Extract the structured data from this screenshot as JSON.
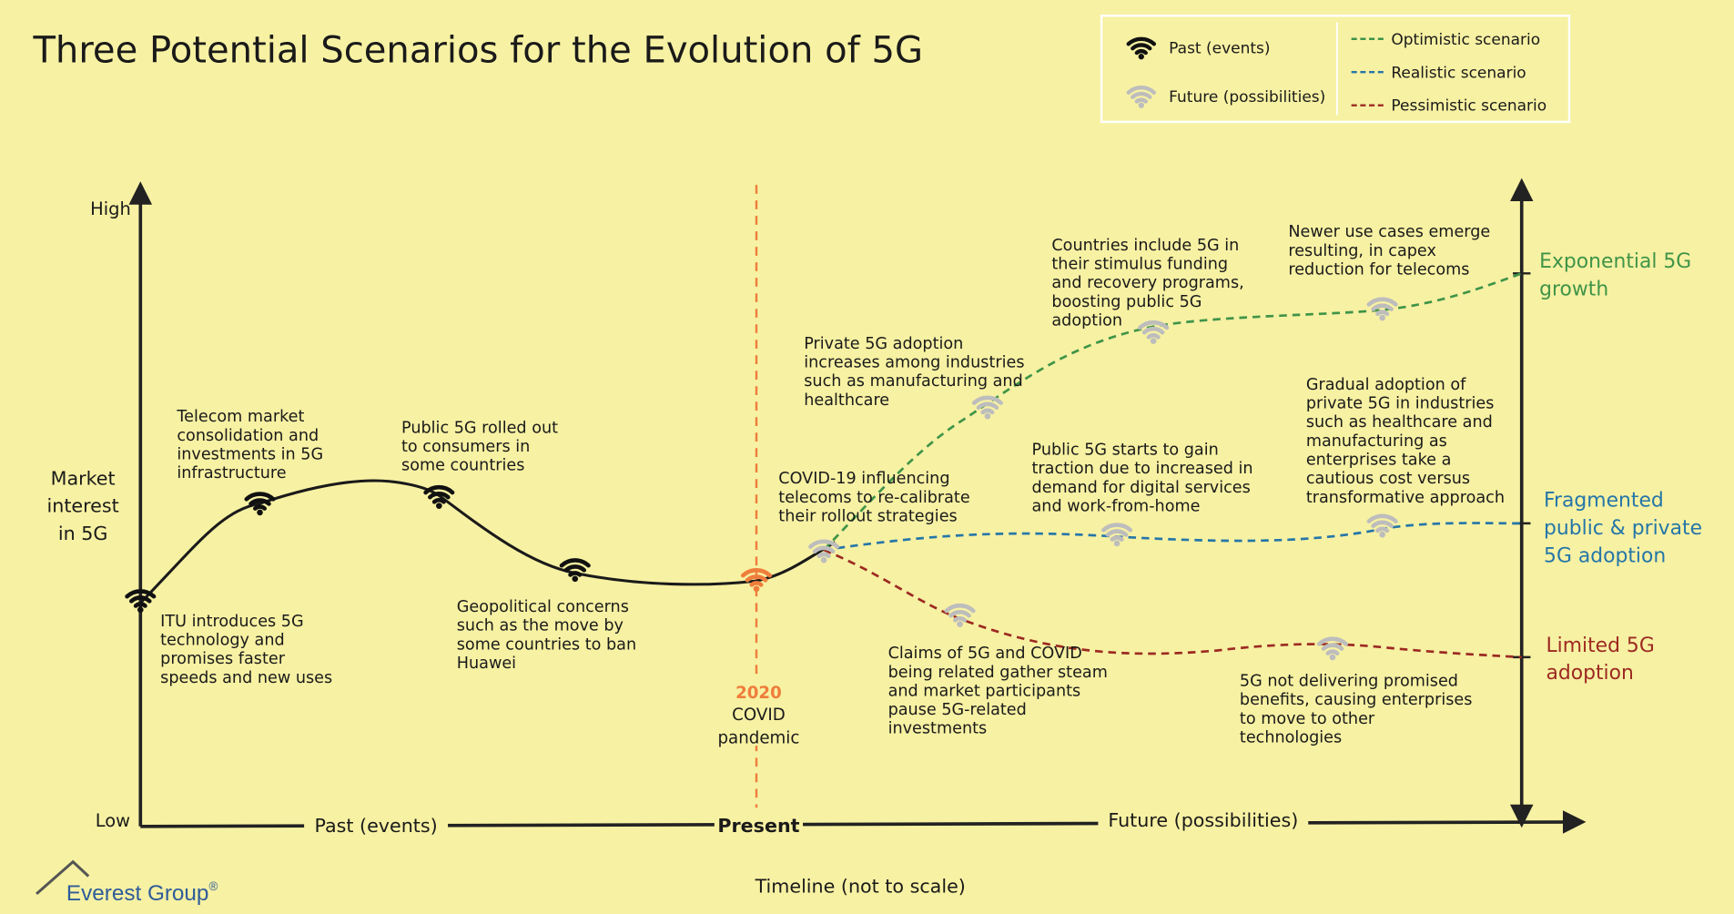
{
  "title": "Three Potential Scenarios for the Evolution of 5G",
  "legend": {
    "icons": [
      "Past (events)",
      "Future (possibilities)"
    ],
    "lines": [
      {
        "label": "Optimistic scenario",
        "color": "#3f9448"
      },
      {
        "label": "Realistic scenario",
        "color": "#2576a8"
      },
      {
        "label": "Pessimistic scenario",
        "color": "#9c2a22"
      }
    ]
  },
  "y_axis": {
    "high": "High",
    "low": "Low",
    "label": [
      "Market",
      "interest",
      "in 5G"
    ]
  },
  "x_axis": {
    "past": "Past (events)",
    "present": "Present",
    "future": "Future (possibilities)",
    "title": "Timeline (not to scale)"
  },
  "present_marker": {
    "year": "2020",
    "label": [
      "COVID",
      "pandemic"
    ]
  },
  "events": [
    {
      "lines": [
        "ITU introduces 5G",
        "technology and",
        "promises faster",
        "speeds and new uses"
      ]
    },
    {
      "lines": [
        "Telecom market",
        "consolidation and",
        "investments in 5G",
        "infrastructure"
      ]
    },
    {
      "lines": [
        "Public 5G rolled out",
        "to consumers in",
        "some countries"
      ]
    },
    {
      "lines": [
        "Geopolitical concerns",
        "such as the move by",
        "some countries to ban",
        "Huawei"
      ]
    },
    {
      "lines": [
        "COVID-19 influencing",
        "telecoms to re-calibrate",
        "their rollout strategies"
      ]
    },
    {
      "lines": [
        "Private 5G adoption",
        "increases among industries",
        "such as manufacturing and",
        "healthcare"
      ]
    },
    {
      "lines": [
        "Countries include 5G in",
        "their stimulus funding",
        "and recovery programs,",
        "boosting public 5G",
        "adoption"
      ]
    },
    {
      "lines": [
        "Newer use cases emerge",
        "resulting, in capex",
        "reduction for telecoms"
      ]
    },
    {
      "lines": [
        "Public 5G starts to gain",
        "traction due to increased in",
        "demand for digital services",
        "and work-from-home"
      ]
    },
    {
      "lines": [
        "Gradual adoption of",
        "private 5G in industries",
        "such as healthcare and",
        "manufacturing as",
        "enterprises take a",
        "cautious cost versus",
        "transformative approach"
      ]
    },
    {
      "lines": [
        "Claims of 5G and COVID",
        "being related gather steam",
        "and market participants",
        "pause 5G-related",
        "investments"
      ]
    },
    {
      "lines": [
        "5G not delivering promised",
        "benefits, causing enterprises",
        "to move to other",
        "technologies"
      ]
    }
  ],
  "outcomes": [
    {
      "lines": [
        "Exponential 5G",
        "growth"
      ]
    },
    {
      "lines": [
        "Fragmented",
        "public & private",
        "5G adoption"
      ]
    },
    {
      "lines": [
        "Limited 5G",
        "adoption"
      ]
    }
  ],
  "logo": {
    "name": "Everest Group",
    "mark": "®"
  }
}
